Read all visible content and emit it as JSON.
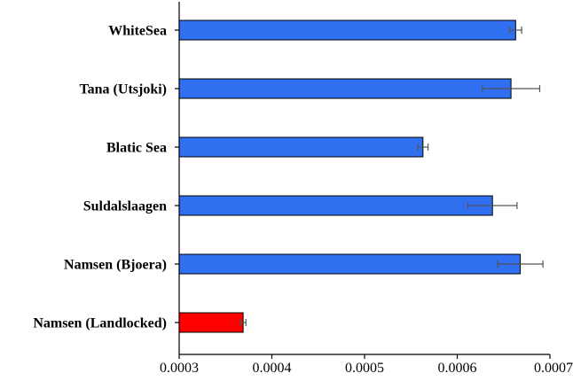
{
  "chart_data": {
    "type": "bar",
    "orientation": "horizontal",
    "title": "",
    "xlabel": "",
    "ylabel": "",
    "categories": [
      "WhiteSea",
      "Tana (Utsjoki)",
      "Blatic Sea",
      "Suldalslaagen",
      "Namsen (Bjoera)",
      "Namsen (Landlocked)"
    ],
    "values": [
      0.000663,
      0.000658,
      0.000563,
      0.000638,
      0.000668,
      0.000369
    ],
    "errors": [
      6.5e-06,
      3.1e-05,
      5.5e-06,
      2.65e-05,
      2.45e-05,
      3e-06
    ],
    "colors": [
      "#2f6ff0",
      "#2f6ff0",
      "#2f6ff0",
      "#2f6ff0",
      "#2f6ff0",
      "#ff0000"
    ],
    "xlim": [
      0.0003,
      0.0007
    ],
    "xticks": [
      0.0003,
      0.0004,
      0.0005,
      0.0006,
      0.0007
    ],
    "xtick_labels": [
      "0.0003",
      "0.0004",
      "0.0005",
      "0.0006",
      "0.0007"
    ],
    "grid": false,
    "legend": "none"
  }
}
